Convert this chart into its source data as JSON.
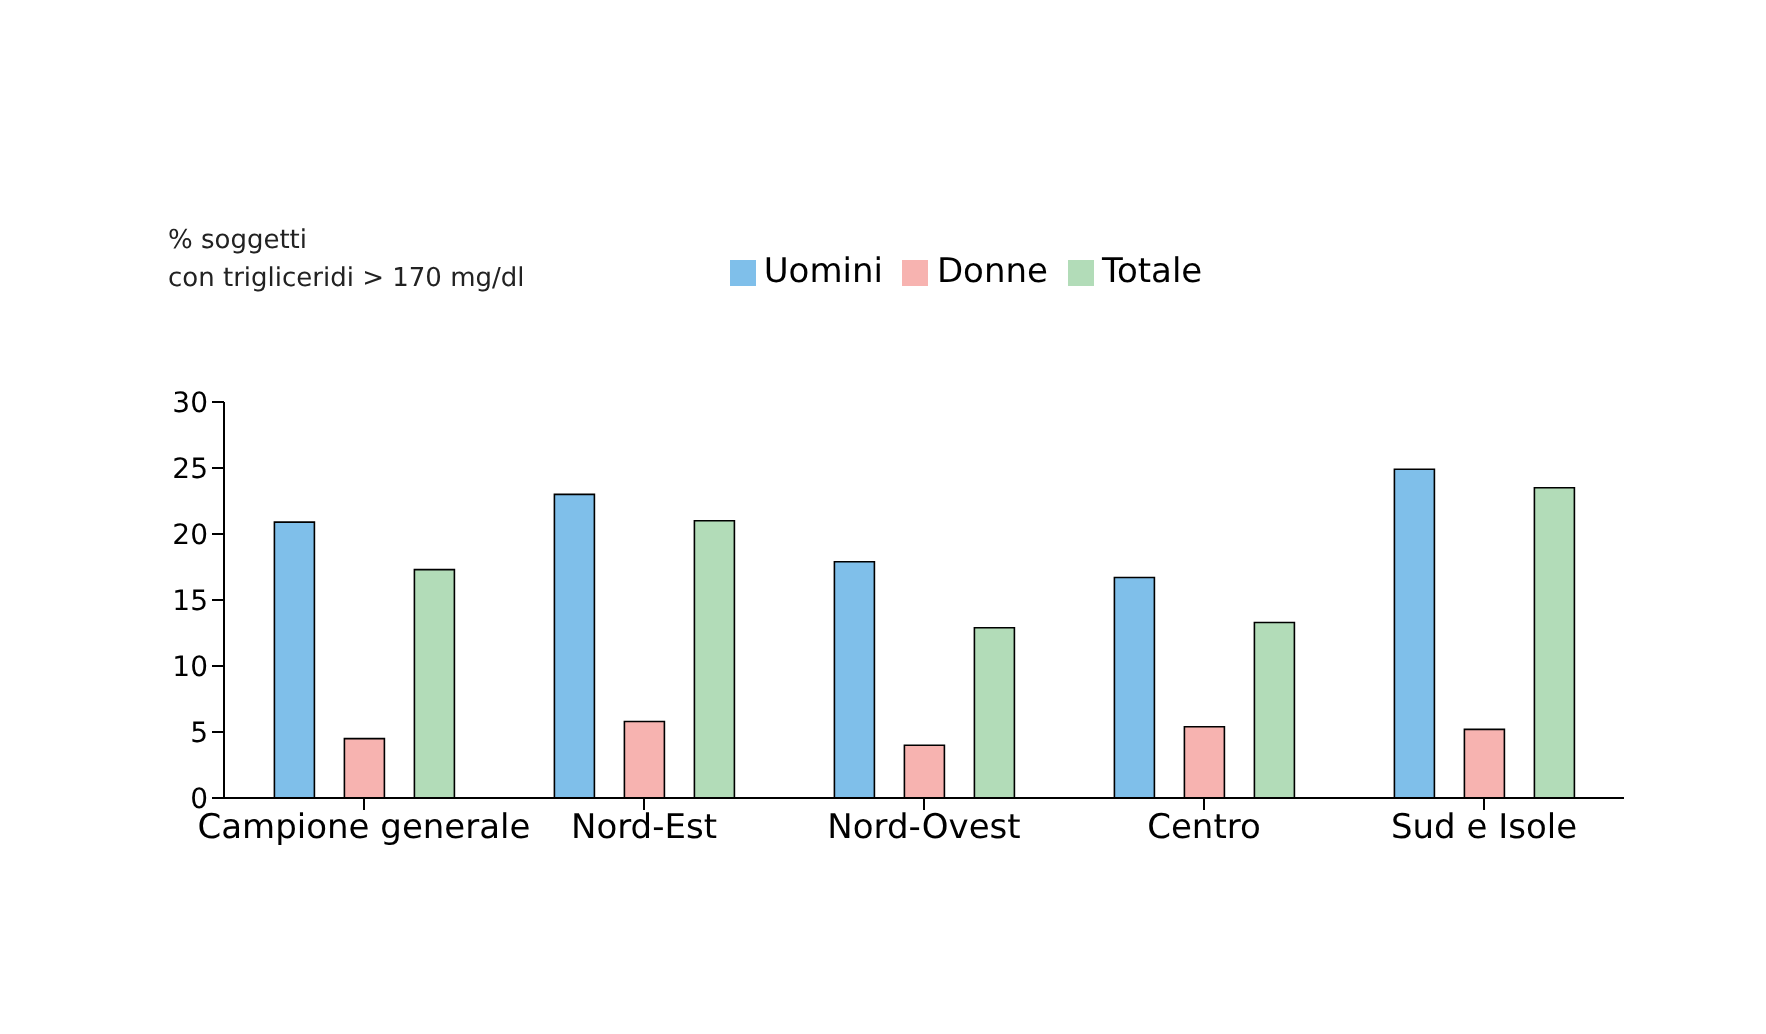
{
  "chart_data": {
    "type": "bar",
    "ylabel": "% soggetti\ncon trigliceridi > 170 mg/dl",
    "categories": [
      "Campione generale",
      "Nord-Est",
      "Nord-Ovest",
      "Centro",
      "Sud e Isole"
    ],
    "series": [
      {
        "name": "Uomini",
        "color": "#7fbfea",
        "values": [
          20.9,
          23.0,
          17.9,
          16.7,
          24.9
        ]
      },
      {
        "name": "Donne",
        "color": "#f7b3b0",
        "values": [
          4.5,
          5.8,
          4.0,
          5.4,
          5.2
        ]
      },
      {
        "name": "Totale",
        "color": "#b2dcb8",
        "values": [
          17.3,
          21.0,
          12.9,
          13.3,
          23.5
        ]
      }
    ],
    "ylim": [
      0,
      30
    ],
    "yticks": [
      0,
      5,
      10,
      15,
      20,
      25,
      30
    ],
    "grid": false,
    "legend": "top"
  }
}
